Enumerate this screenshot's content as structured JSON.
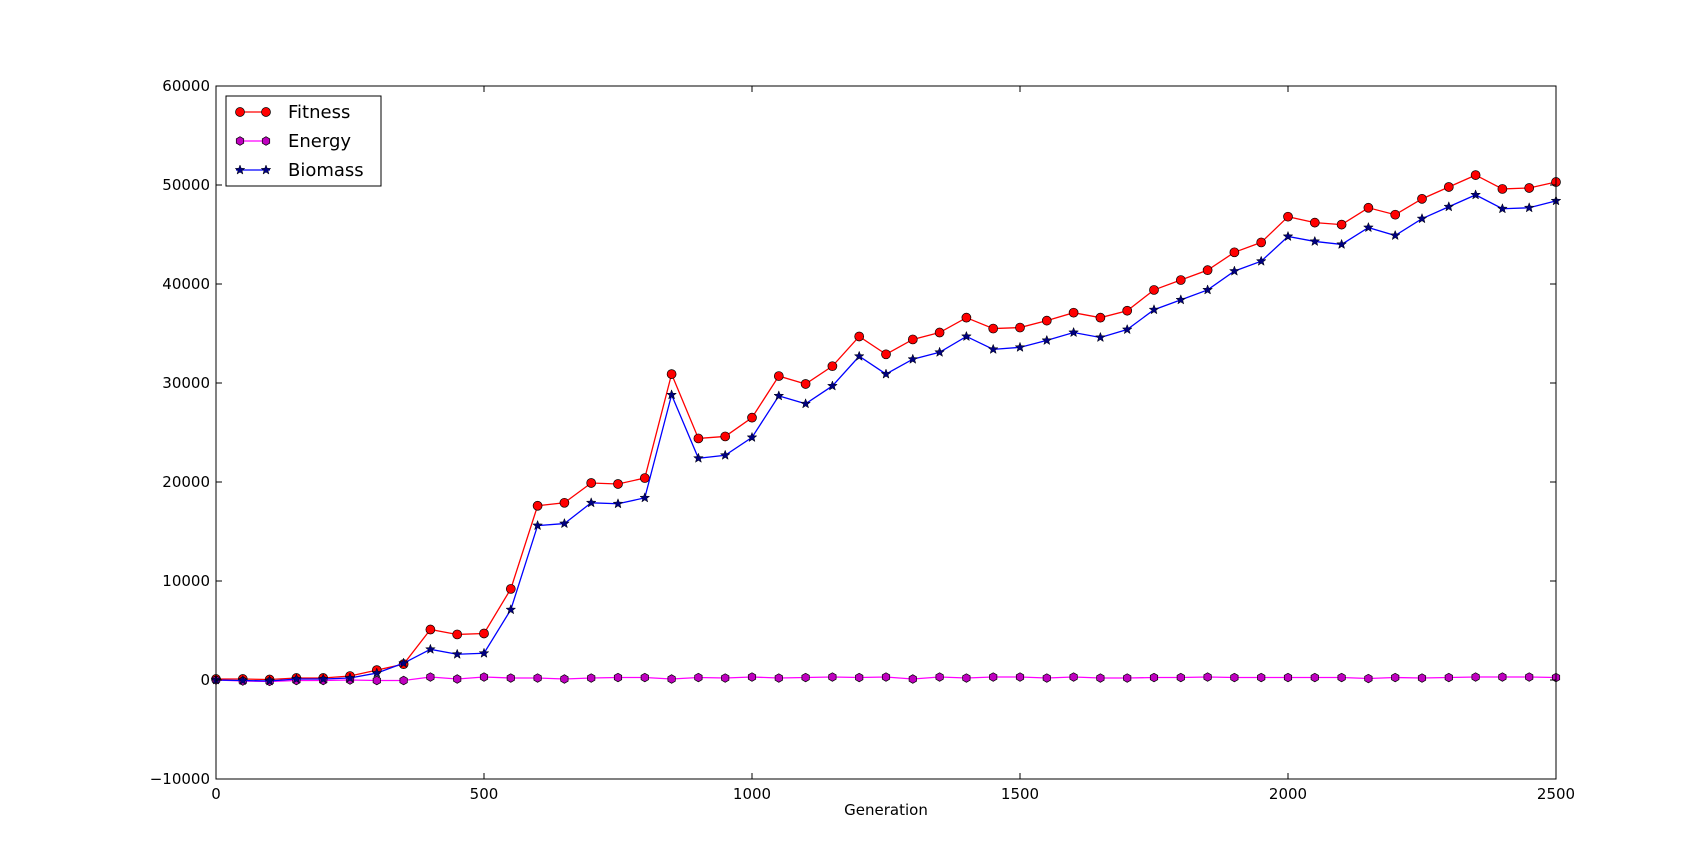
{
  "chart_data": {
    "type": "line",
    "title": "",
    "xlabel": "Generation",
    "ylabel": "",
    "xlim": [
      0,
      2500
    ],
    "ylim": [
      -10000,
      60000
    ],
    "xticks": [
      0,
      500,
      1000,
      1500,
      2000,
      2500
    ],
    "yticks": [
      -10000,
      0,
      10000,
      20000,
      30000,
      40000,
      50000,
      60000
    ],
    "grid": false,
    "legend_position": "top-left",
    "x": [
      0,
      50,
      100,
      150,
      200,
      250,
      300,
      350,
      400,
      450,
      500,
      550,
      600,
      650,
      700,
      750,
      800,
      850,
      900,
      950,
      1000,
      1050,
      1100,
      1150,
      1200,
      1250,
      1300,
      1350,
      1400,
      1450,
      1500,
      1550,
      1600,
      1650,
      1700,
      1750,
      1800,
      1850,
      1900,
      1950,
      2000,
      2050,
      2100,
      2150,
      2200,
      2250,
      2300,
      2350,
      2400,
      2450,
      2500
    ],
    "series": [
      {
        "name": "Fitness",
        "color": "#ff0000",
        "line_color": "#ff0000",
        "marker": "circle",
        "values": [
          100,
          100,
          50,
          200,
          200,
          400,
          1000,
          1600,
          5100,
          4600,
          4700,
          9200,
          17600,
          17900,
          19900,
          19800,
          20400,
          30900,
          24400,
          24600,
          26500,
          30700,
          29900,
          31700,
          34700,
          32900,
          34400,
          35100,
          36600,
          35500,
          35600,
          36300,
          37100,
          36600,
          37300,
          39400,
          40400,
          41400,
          43200,
          44200,
          46800,
          46200,
          46000,
          47700,
          47000,
          48600,
          49800,
          51000,
          49600,
          49700,
          50300
        ]
      },
      {
        "name": "Energy",
        "color": "#bf00bf",
        "line_color": "#ff00ff",
        "marker": "hexagon",
        "values": [
          0,
          -100,
          -150,
          -50,
          -50,
          0,
          -50,
          -50,
          300,
          100,
          300,
          200,
          200,
          100,
          200,
          250,
          250,
          100,
          250,
          200,
          300,
          200,
          250,
          300,
          250,
          300,
          100,
          300,
          200,
          300,
          300,
          200,
          300,
          200,
          200,
          250,
          250,
          300,
          250,
          250,
          250,
          250,
          250,
          150,
          250,
          200,
          250,
          300,
          300,
          300,
          250
        ]
      },
      {
        "name": "Biomass",
        "color": "#000080",
        "line_color": "#0000ff",
        "marker": "star",
        "values": [
          0,
          -50,
          -100,
          100,
          100,
          200,
          700,
          1700,
          3100,
          2600,
          2700,
          7100,
          15600,
          15800,
          17900,
          17800,
          18400,
          28800,
          22400,
          22700,
          24500,
          28700,
          27900,
          29700,
          32700,
          30900,
          32400,
          33100,
          34700,
          33400,
          33600,
          34300,
          35100,
          34600,
          35400,
          37400,
          38400,
          39400,
          41300,
          42300,
          44800,
          44300,
          44000,
          45700,
          44900,
          46600,
          47800,
          49000,
          47600,
          47700,
          48400
        ]
      }
    ]
  }
}
